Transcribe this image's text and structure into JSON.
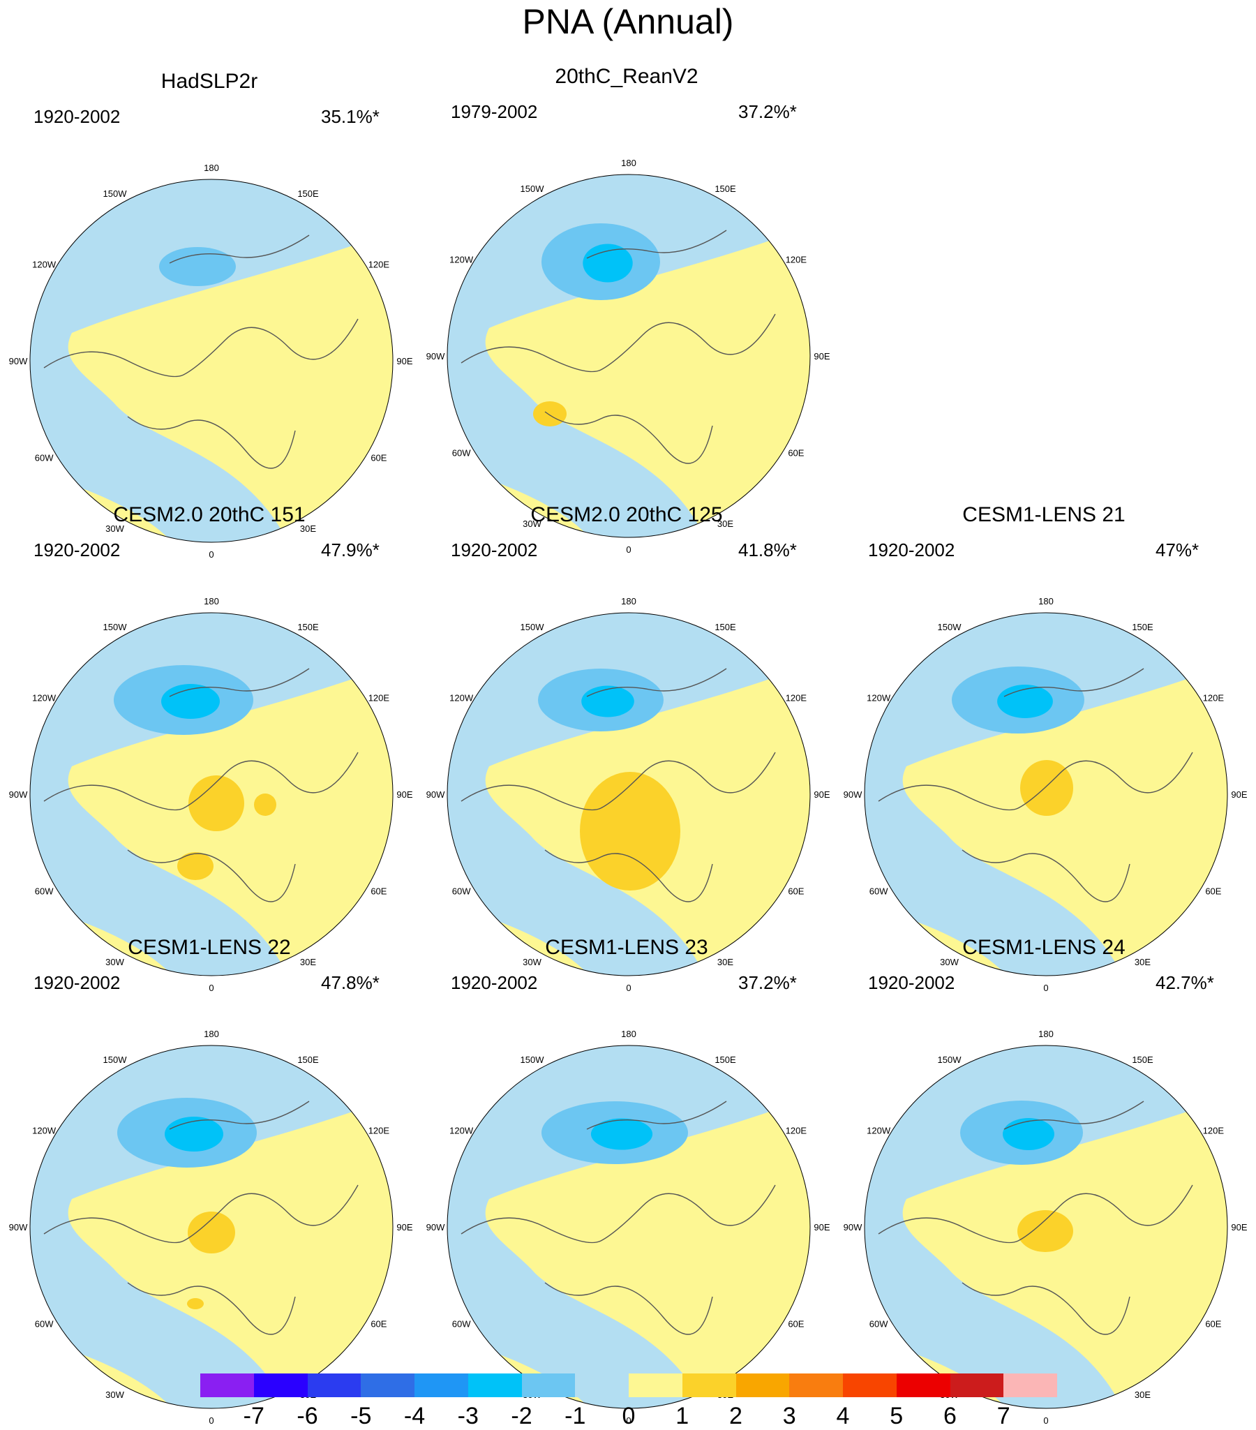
{
  "title": "PNA (Annual)",
  "lon_labels": [
    "180",
    "150E",
    "120E",
    "90E",
    "60E",
    "30E",
    "0",
    "30W",
    "60W",
    "90W",
    "120W",
    "150W"
  ],
  "panels": [
    {
      "title": "HadSLP2r",
      "period": "1920-2002",
      "percent": "35.1%*"
    },
    {
      "title": "20thC_ReanV2",
      "period": "1979-2002",
      "percent": "37.2%*"
    },
    {
      "title": "CESM2.0 20thC 151",
      "period": "1920-2002",
      "percent": "47.9%*"
    },
    {
      "title": "CESM2.0 20thC 125",
      "period": "1920-2002",
      "percent": "41.8%*"
    },
    {
      "title": "CESM1-LENS 21",
      "period": "1920-2002",
      "percent": "47%*"
    },
    {
      "title": "CESM1-LENS 22",
      "period": "1920-2002",
      "percent": "47.8%*"
    },
    {
      "title": "CESM1-LENS 23",
      "period": "1920-2002",
      "percent": "37.2%*"
    },
    {
      "title": "CESM1-LENS 24",
      "period": "1920-2002",
      "percent": "42.7%*"
    }
  ],
  "colorbar": {
    "labels": [
      "-7",
      "-6",
      "-5",
      "-4",
      "-3",
      "-2",
      "-1",
      "0",
      "1",
      "2",
      "3",
      "4",
      "5",
      "6",
      "7"
    ],
    "colors": [
      "#8a1ff2",
      "#2a00ff",
      "#2b3cf0",
      "#2f6ee6",
      "#1f96f5",
      "#00c2f8",
      "#6cc6f2",
      "#b3def2",
      "#fdf793",
      "#fbd22a",
      "#f9a600",
      "#f97d0f",
      "#f84500",
      "#ec0000",
      "#cc1c1c",
      "#fbb6b6"
    ]
  }
}
